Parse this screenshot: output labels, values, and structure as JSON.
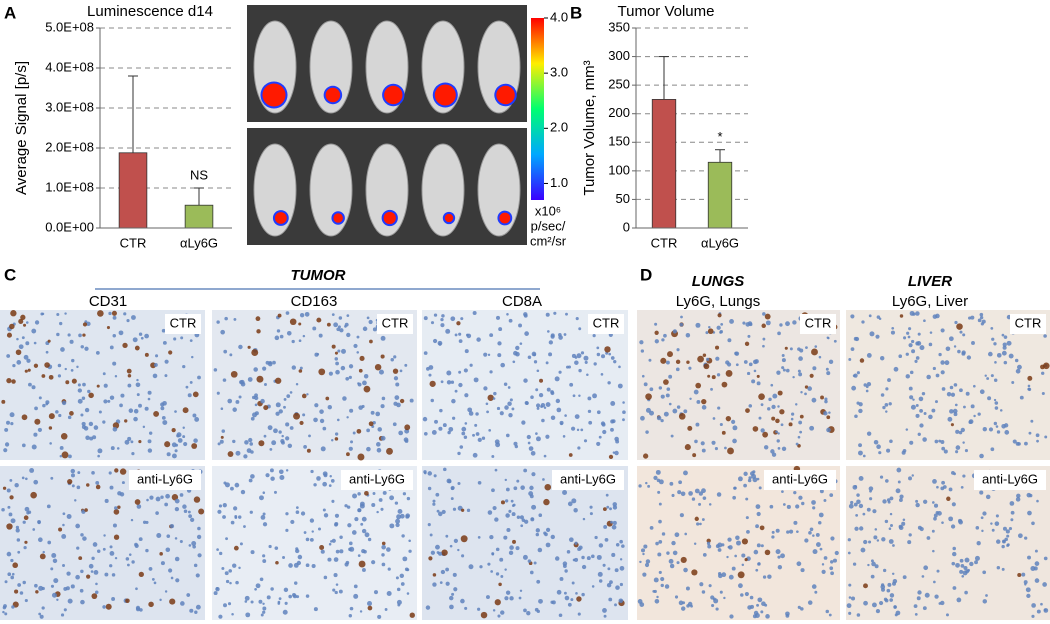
{
  "panel_labels": [
    "A",
    "B",
    "C",
    "D"
  ],
  "chart_data": [
    {
      "type": "bar",
      "title": "Luminescence d14",
      "y_label": "Average Signal [p/s]",
      "categories": [
        "CTR",
        "αLy6G"
      ],
      "values": [
        188000000,
        57000000
      ],
      "errors": [
        192000000,
        43000000
      ],
      "colors": [
        "#c0504d",
        "#9bbb59"
      ],
      "significance": [
        null,
        "NS"
      ],
      "ylim": [
        0,
        500000000
      ],
      "yticks": [
        {
          "value": 0,
          "label": "0.0E+00"
        },
        {
          "value": 100000000,
          "label": "1.0E+08"
        },
        {
          "value": 200000000,
          "label": "2.0E+08"
        },
        {
          "value": 300000000,
          "label": "3.0E+08"
        },
        {
          "value": 400000000,
          "label": "4.0E+08"
        },
        {
          "value": 500000000,
          "label": "5.0E+08"
        }
      ],
      "grid": true
    },
    {
      "type": "bar",
      "title": "Tumor Volume",
      "y_label": "Tumor Volume, mm³",
      "categories": [
        "CTR",
        "αLy6G"
      ],
      "values": [
        225,
        115
      ],
      "errors": [
        75,
        22
      ],
      "colors": [
        "#c0504d",
        "#9bbb59"
      ],
      "significance": [
        null,
        "*"
      ],
      "ylim": [
        0,
        350
      ],
      "yticks": [
        0,
        50,
        100,
        150,
        200,
        250,
        300,
        350
      ],
      "grid": true
    }
  ],
  "colorbar": {
    "lim": [
      0.7,
      4.0
    ],
    "ticks": [
      {
        "value": 1,
        "label": "1.0"
      },
      {
        "value": 2,
        "label": "2.0"
      },
      {
        "value": 3,
        "label": "3.0"
      },
      {
        "value": 4,
        "label": "4.0"
      }
    ],
    "unit_lines": [
      "x10⁶",
      "p/sec/",
      "cm²/sr"
    ]
  },
  "histology": {
    "row_labels": [
      "CTR",
      "anti-Ly6G"
    ],
    "tumor": {
      "title": "TUMOR",
      "columns": [
        "CD31",
        "CD163",
        "CD8A"
      ]
    },
    "lungs": {
      "title": "LUNGS",
      "subtitle": "Ly6G, Lungs"
    },
    "liver": {
      "title": "LIVER",
      "subtitle": "Ly6G, Liver"
    }
  }
}
